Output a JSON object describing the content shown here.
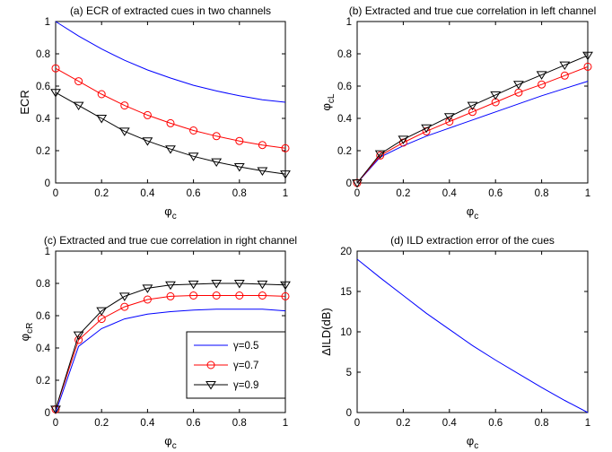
{
  "chart_data": [
    {
      "type": "line",
      "title": "(a) ECR of extracted cues in two channels",
      "xlabel": "φc",
      "ylabel": "ECR",
      "xlim": [
        0,
        1
      ],
      "ylim": [
        0,
        1
      ],
      "xticks": [
        "0",
        "0.2",
        "0.4",
        "0.6",
        "0.8",
        "1"
      ],
      "yticks": [
        "0",
        "0.2",
        "0.4",
        "0.6",
        "0.8",
        "1"
      ],
      "x": [
        0,
        0.1,
        0.2,
        0.3,
        0.4,
        0.5,
        0.6,
        0.7,
        0.8,
        0.9,
        1.0
      ],
      "series": [
        {
          "color": "#0000ff",
          "marker": "none",
          "values": [
            1.0,
            0.91,
            0.83,
            0.76,
            0.7,
            0.65,
            0.605,
            0.57,
            0.54,
            0.515,
            0.5
          ]
        },
        {
          "color": "#ff0000",
          "marker": "circle",
          "values": [
            0.71,
            0.63,
            0.55,
            0.48,
            0.42,
            0.37,
            0.325,
            0.29,
            0.26,
            0.235,
            0.215
          ]
        },
        {
          "color": "#000000",
          "marker": "triangle-down",
          "values": [
            0.56,
            0.48,
            0.4,
            0.32,
            0.26,
            0.21,
            0.165,
            0.13,
            0.1,
            0.075,
            0.055
          ]
        }
      ]
    },
    {
      "type": "line",
      "title": "(b) Extracted and true cue correlation in left channel",
      "xlabel": "φc",
      "ylabel": "φcL",
      "xlim": [
        0,
        1
      ],
      "ylim": [
        0,
        1
      ],
      "xticks": [
        "0",
        "0.2",
        "0.4",
        "0.6",
        "0.8",
        "1"
      ],
      "yticks": [
        "0",
        "0.2",
        "0.4",
        "0.6",
        "0.8",
        "1"
      ],
      "x": [
        0,
        0.1,
        0.2,
        0.3,
        0.4,
        0.5,
        0.6,
        0.7,
        0.8,
        0.9,
        1.0
      ],
      "series": [
        {
          "color": "#0000ff",
          "marker": "none",
          "values": [
            0.0,
            0.16,
            0.23,
            0.29,
            0.34,
            0.39,
            0.44,
            0.49,
            0.54,
            0.585,
            0.63
          ]
        },
        {
          "color": "#ff0000",
          "marker": "circle",
          "values": [
            0.0,
            0.17,
            0.25,
            0.32,
            0.38,
            0.44,
            0.5,
            0.56,
            0.61,
            0.665,
            0.72
          ]
        },
        {
          "color": "#000000",
          "marker": "triangle-down",
          "values": [
            0.0,
            0.18,
            0.27,
            0.34,
            0.41,
            0.48,
            0.545,
            0.61,
            0.67,
            0.73,
            0.79
          ]
        }
      ]
    },
    {
      "type": "line",
      "title": "(c) Extracted and true cue correlation in right channel",
      "xlabel": "φc",
      "ylabel": "φcR",
      "xlim": [
        0,
        1
      ],
      "ylim": [
        0,
        1
      ],
      "xticks": [
        "0",
        "0.2",
        "0.4",
        "0.6",
        "0.8",
        "1"
      ],
      "yticks": [
        "0",
        "0.2",
        "0.4",
        "0.6",
        "0.8",
        "1"
      ],
      "x": [
        0,
        0.1,
        0.2,
        0.3,
        0.4,
        0.5,
        0.6,
        0.7,
        0.8,
        0.9,
        1.0
      ],
      "legend": {
        "placement": "lower-right",
        "entries": [
          "γ=0.5",
          "γ=0.7",
          "γ=0.9"
        ]
      },
      "series": [
        {
          "name": "γ=0.5",
          "color": "#0000ff",
          "marker": "none",
          "values": [
            0.0,
            0.41,
            0.52,
            0.58,
            0.61,
            0.625,
            0.635,
            0.64,
            0.64,
            0.64,
            0.63
          ]
        },
        {
          "name": "γ=0.7",
          "color": "#ff0000",
          "marker": "circle",
          "values": [
            0.02,
            0.45,
            0.58,
            0.655,
            0.7,
            0.72,
            0.725,
            0.725,
            0.725,
            0.725,
            0.72
          ]
        },
        {
          "name": "γ=0.9",
          "color": "#000000",
          "marker": "triangle-down",
          "values": [
            0.02,
            0.48,
            0.63,
            0.72,
            0.77,
            0.79,
            0.795,
            0.8,
            0.8,
            0.795,
            0.79
          ]
        }
      ]
    },
    {
      "type": "line",
      "title": "(d) ILD extraction error of the cues",
      "xlabel": "φc",
      "ylabel": "ΔILD(dB)",
      "xlim": [
        0,
        1
      ],
      "ylim": [
        0,
        20
      ],
      "xticks": [
        "0",
        "0.2",
        "0.4",
        "0.6",
        "0.8",
        "1"
      ],
      "yticks": [
        "0",
        "5",
        "10",
        "15",
        "20"
      ],
      "x": [
        0,
        0.1,
        0.2,
        0.3,
        0.4,
        0.5,
        0.6,
        0.7,
        0.8,
        0.9,
        1.0
      ],
      "series": [
        {
          "color": "#0000ff",
          "marker": "none",
          "values": [
            19.0,
            16.7,
            14.5,
            12.3,
            10.3,
            8.3,
            6.5,
            4.8,
            3.1,
            1.5,
            0.0
          ]
        }
      ]
    }
  ]
}
